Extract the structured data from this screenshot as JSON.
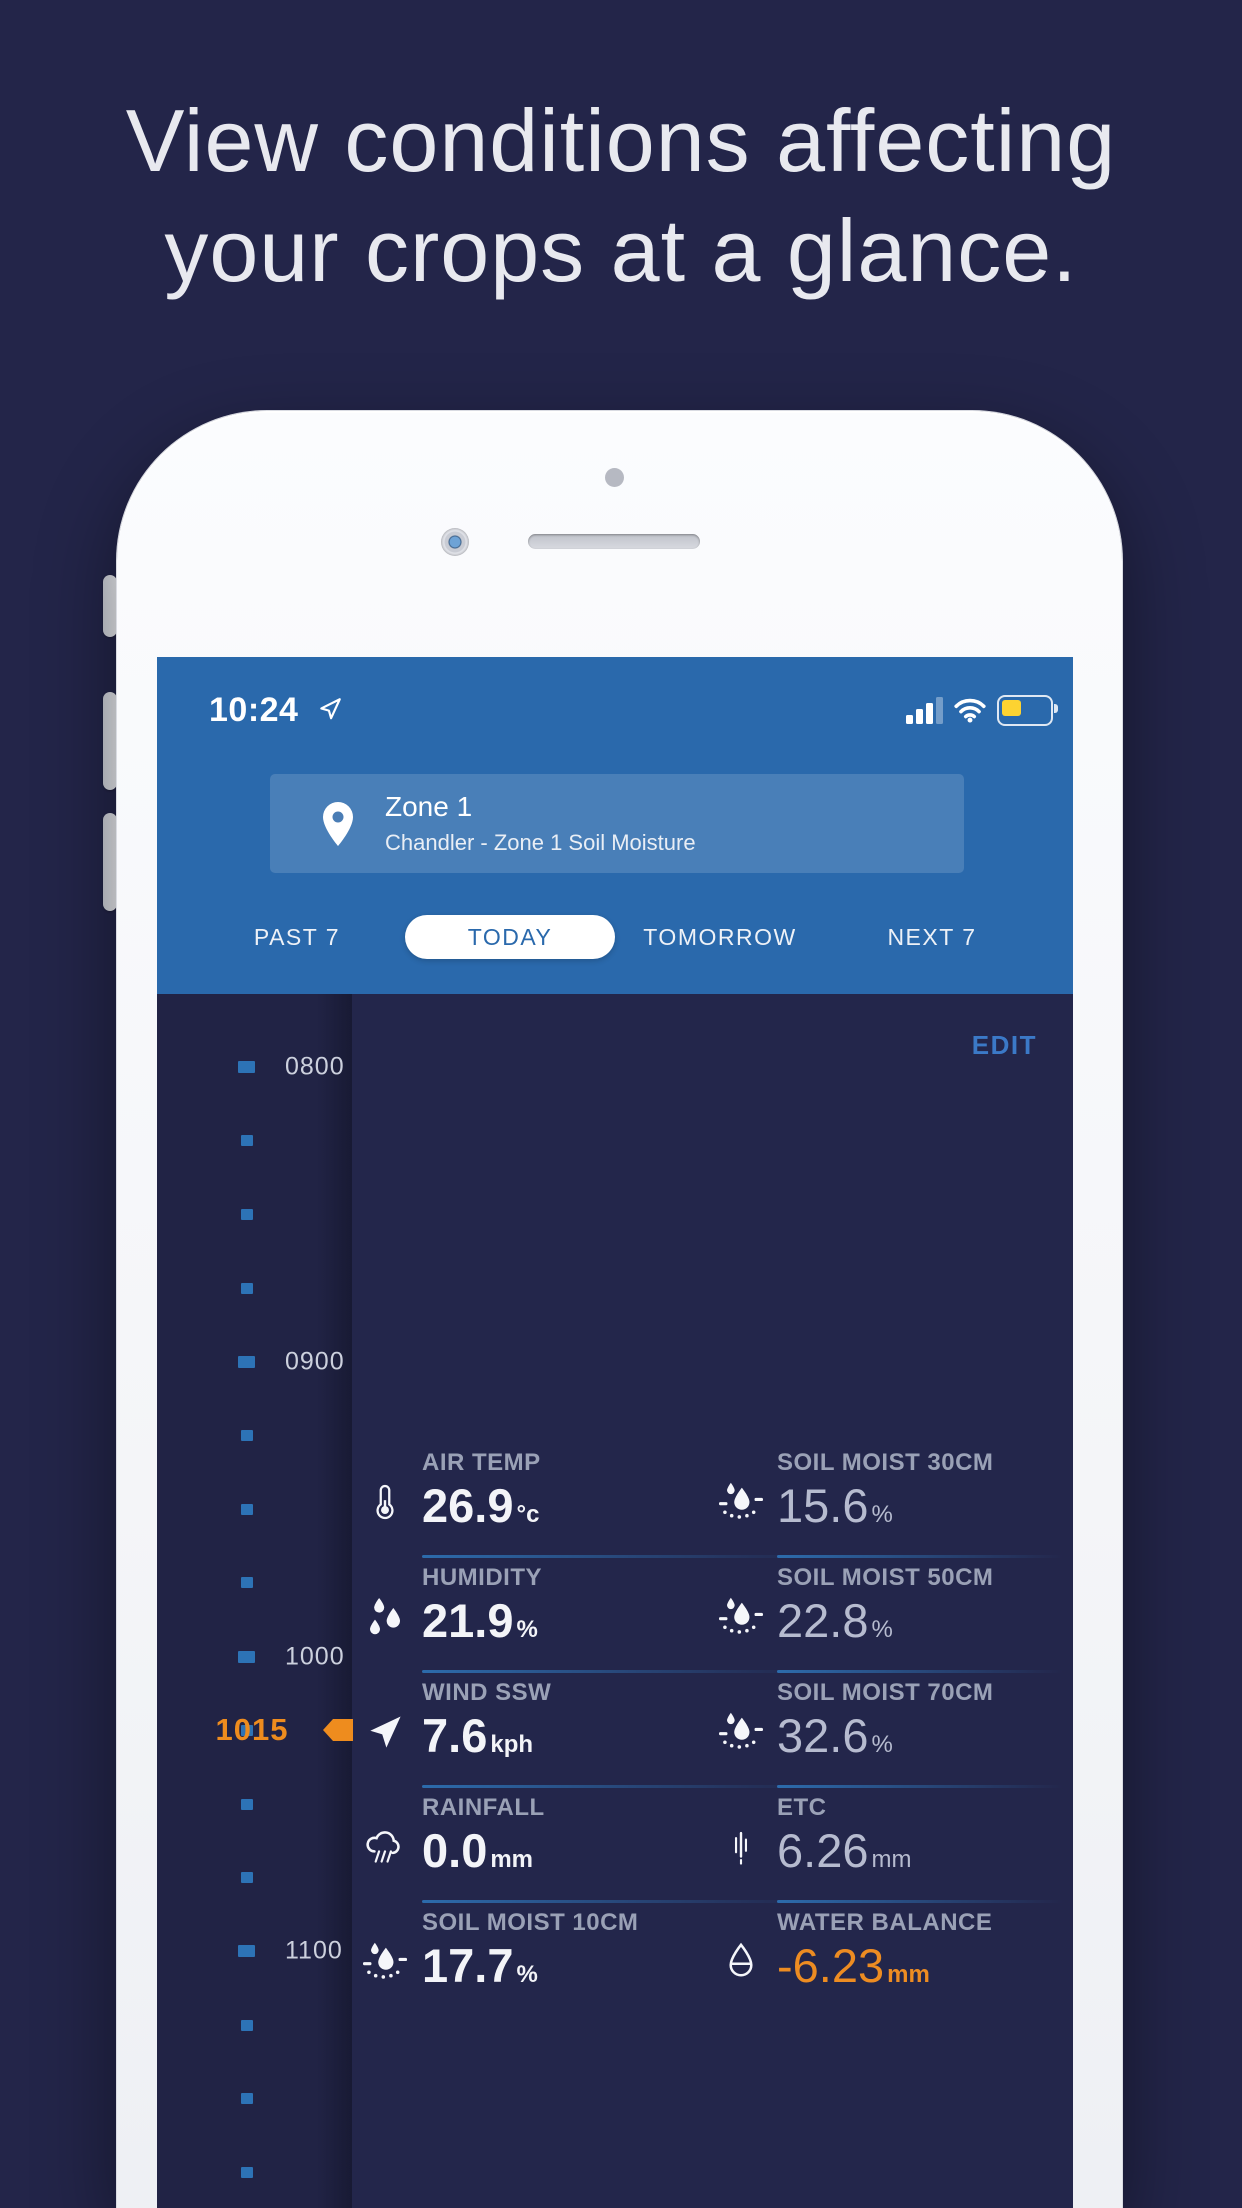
{
  "hero": {
    "heading_line1": "View conditions affecting",
    "heading_line2": "your crops at a glance."
  },
  "status_bar": {
    "time": "10:24",
    "icons": [
      "location-arrow-icon",
      "cell-signal-icon",
      "wifi-icon",
      "battery-icon"
    ],
    "battery_color": "#fdd331"
  },
  "zone_selector": {
    "icon": "location-pin-icon",
    "name": "Zone 1",
    "description": "Chandler - Zone 1 Soil Moisture"
  },
  "tabs": [
    {
      "label": "PAST 7",
      "active": false
    },
    {
      "label": "TODAY",
      "active": true
    },
    {
      "label": "TOMORROW",
      "active": false
    },
    {
      "label": "NEXT 7",
      "active": false
    }
  ],
  "edit_button": "EDIT",
  "timeline": {
    "hour_labels": [
      "0800",
      "0900",
      "1000",
      "1100"
    ],
    "ticks_per_hour": 4,
    "current_time_label": "1015",
    "current_tick_index": 9
  },
  "metrics": {
    "rows": [
      {
        "left": {
          "label": "AIR TEMP",
          "value": "26.9",
          "unit": "°c",
          "icon": "thermometer-icon",
          "style": "bold"
        },
        "right": {
          "label": "SOIL MOIST 30CM",
          "value": "15.6",
          "unit": "%",
          "icon": "soil-moisture-icon",
          "style": "light"
        },
        "divider": true
      },
      {
        "left": {
          "label": "HUMIDITY",
          "value": "21.9",
          "unit": "%",
          "icon": "humidity-icon",
          "style": "bold"
        },
        "right": {
          "label": "SOIL MOIST 50CM",
          "value": "22.8",
          "unit": "%",
          "icon": "soil-moisture-icon",
          "style": "light"
        },
        "divider": true
      },
      {
        "left": {
          "label": "WIND SSW",
          "value": "7.6",
          "unit": "kph",
          "icon": "wind-direction-icon",
          "style": "bold"
        },
        "right": {
          "label": "SOIL MOIST 70CM",
          "value": "32.6",
          "unit": "%",
          "icon": "soil-moisture-icon",
          "style": "light"
        },
        "divider": true
      },
      {
        "left": {
          "label": "RAINFALL",
          "value": "0.0",
          "unit": "mm",
          "icon": "rainfall-icon",
          "style": "bold"
        },
        "right": {
          "label": "ETC",
          "value": "6.26",
          "unit": "mm",
          "icon": "evapotranspiration-icon",
          "style": "light"
        },
        "divider": true
      },
      {
        "left": {
          "label": "SOIL MOIST 10CM",
          "value": "17.7",
          "unit": "%",
          "icon": "soil-moisture-icon",
          "style": "bold"
        },
        "right": {
          "label": "WATER BALANCE",
          "value": "-6.23",
          "unit": "mm",
          "icon": "water-balance-icon",
          "style": "accent"
        },
        "divider": false
      }
    ]
  },
  "colors": {
    "background_navy": "#232549",
    "header_blue": "#2a69ac",
    "tick_blue": "#2d73b6",
    "edit_blue": "#3b79c7",
    "accent_orange": "#ee8c1e",
    "battery_yellow": "#fdd331"
  }
}
